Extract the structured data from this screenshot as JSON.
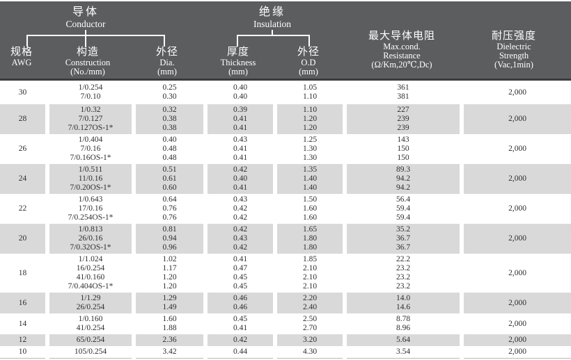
{
  "colors": {
    "header_bg": "#5c5d5f",
    "header_rule": "#3c3c3e",
    "header_text": "#ffffff",
    "row_alt_bg": "#d9d9d9",
    "body_text": "#2e2e2e",
    "bottom_rule": "#b9b9b9"
  },
  "header": {
    "conductor": {
      "zh": "导体",
      "en": "Conductor"
    },
    "insulation": {
      "zh": "绝缘",
      "en": "Insulation"
    },
    "columns": [
      {
        "zh": "规格",
        "en": "AWG"
      },
      {
        "zh": "构造",
        "en": "Construction",
        "sub": "(No./mm)"
      },
      {
        "zh": "外径",
        "en": "Dia.",
        "sub": "(mm)"
      },
      {
        "zh": "厚度",
        "en": "Thickness",
        "sub": "(mm)"
      },
      {
        "zh": "外径",
        "en": "O.D",
        "sub": "(mm)"
      },
      {
        "zh": "最大导体电阻",
        "en": "Max.cond.",
        "en2": "Resistance",
        "sub": "(Ω/Km,20℃,Dc)"
      },
      {
        "zh": "耐压强度",
        "en": "Dielectric",
        "en2": "Strength",
        "sub": "(Vac,1min)"
      }
    ]
  },
  "rows": [
    {
      "awg": "30",
      "construction": [
        "1/0.254",
        "7/0.10"
      ],
      "dia": [
        "0.25",
        "0.30"
      ],
      "thickness": [
        "0.40",
        "0.40"
      ],
      "od": [
        "1.05",
        "1.10"
      ],
      "resistance": [
        "361",
        "381"
      ],
      "dielectric": "2,000"
    },
    {
      "awg": "28",
      "construction": [
        "1/0.32",
        "7/0.127",
        "7/0.127OS-1*"
      ],
      "dia": [
        "0.32",
        "0.38",
        "0.38"
      ],
      "thickness": [
        "0.39",
        "0.41",
        "0.41"
      ],
      "od": [
        "1.10",
        "1.20",
        "1.20"
      ],
      "resistance": [
        "227",
        "239",
        "239"
      ],
      "dielectric": "2,000"
    },
    {
      "awg": "26",
      "construction": [
        "1/0.404",
        "7/0.16",
        "7/0.16OS-1*"
      ],
      "dia": [
        "0.40",
        "0.48",
        "0.48"
      ],
      "thickness": [
        "0.43",
        "0.41",
        "0.41"
      ],
      "od": [
        "1.25",
        "1.30",
        "1.30"
      ],
      "resistance": [
        "143",
        "150",
        "150"
      ],
      "dielectric": "2,000"
    },
    {
      "awg": "24",
      "construction": [
        "1/0.511",
        "11/0.16",
        "7/0.20OS-1*"
      ],
      "dia": [
        "0.51",
        "0.61",
        "0.60"
      ],
      "thickness": [
        "0.42",
        "0.40",
        "0.41"
      ],
      "od": [
        "1.35",
        "1.40",
        "1.40"
      ],
      "resistance": [
        "89.3",
        "94.2",
        "94.2"
      ],
      "dielectric": "2,000"
    },
    {
      "awg": "22",
      "construction": [
        "1/0.643",
        "17/0.16",
        "7/0.254OS-1*"
      ],
      "dia": [
        "0.64",
        "0.76",
        "0.76"
      ],
      "thickness": [
        "0.43",
        "0.42",
        "0.42"
      ],
      "od": [
        "1.50",
        "1.60",
        "1.60"
      ],
      "resistance": [
        "56.4",
        "59.4",
        "59.4"
      ],
      "dielectric": "2,000"
    },
    {
      "awg": "20",
      "construction": [
        "1/0.813",
        "26/0.16",
        "7/0.32OS-1*"
      ],
      "dia": [
        "0.81",
        "0.94",
        "0.96"
      ],
      "thickness": [
        "0.42",
        "0.43",
        "0.42"
      ],
      "od": [
        "1.65",
        "1.80",
        "1.80"
      ],
      "resistance": [
        "35.2",
        "36.7",
        "36.7"
      ],
      "dielectric": "2,000"
    },
    {
      "awg": "18",
      "construction": [
        "1/1.024",
        "16/0.254",
        "41/0.160",
        "7/0.404OS-1*"
      ],
      "dia": [
        "1.02",
        "1.17",
        "1.20",
        "1.20"
      ],
      "thickness": [
        "0.41",
        "0.47",
        "0.45",
        "0.45"
      ],
      "od": [
        "1.85",
        "2.10",
        "2.10",
        "2.10"
      ],
      "resistance": [
        "22.2",
        "23.2",
        "23.2",
        "23.2"
      ],
      "dielectric": "2,000"
    },
    {
      "awg": "16",
      "construction": [
        "1/1.29",
        "26/0.254"
      ],
      "dia": [
        "1.29",
        "1.49"
      ],
      "thickness": [
        "0.46",
        "0.46"
      ],
      "od": [
        "2.20",
        "2.40"
      ],
      "resistance": [
        "14.0",
        "14.6"
      ],
      "dielectric": "2,000"
    },
    {
      "awg": "14",
      "construction": [
        "1/0.160",
        "41/0.254"
      ],
      "dia": [
        "1.60",
        "1.88"
      ],
      "thickness": [
        "0.45",
        "0.41"
      ],
      "od": [
        "2.50",
        "2.70"
      ],
      "resistance": [
        "8.78",
        "8.96"
      ],
      "dielectric": "2,000"
    },
    {
      "awg": "12",
      "construction": [
        "65/0.254"
      ],
      "dia": [
        "2.36"
      ],
      "thickness": [
        "0.42"
      ],
      "od": [
        "3.20"
      ],
      "resistance": [
        "5.64"
      ],
      "dielectric": "2,000"
    },
    {
      "awg": "10",
      "construction": [
        "105/0.254"
      ],
      "dia": [
        "3.42"
      ],
      "thickness": [
        "0.44"
      ],
      "od": [
        "4.30"
      ],
      "resistance": [
        "3.54"
      ],
      "dielectric": "2,000"
    }
  ]
}
